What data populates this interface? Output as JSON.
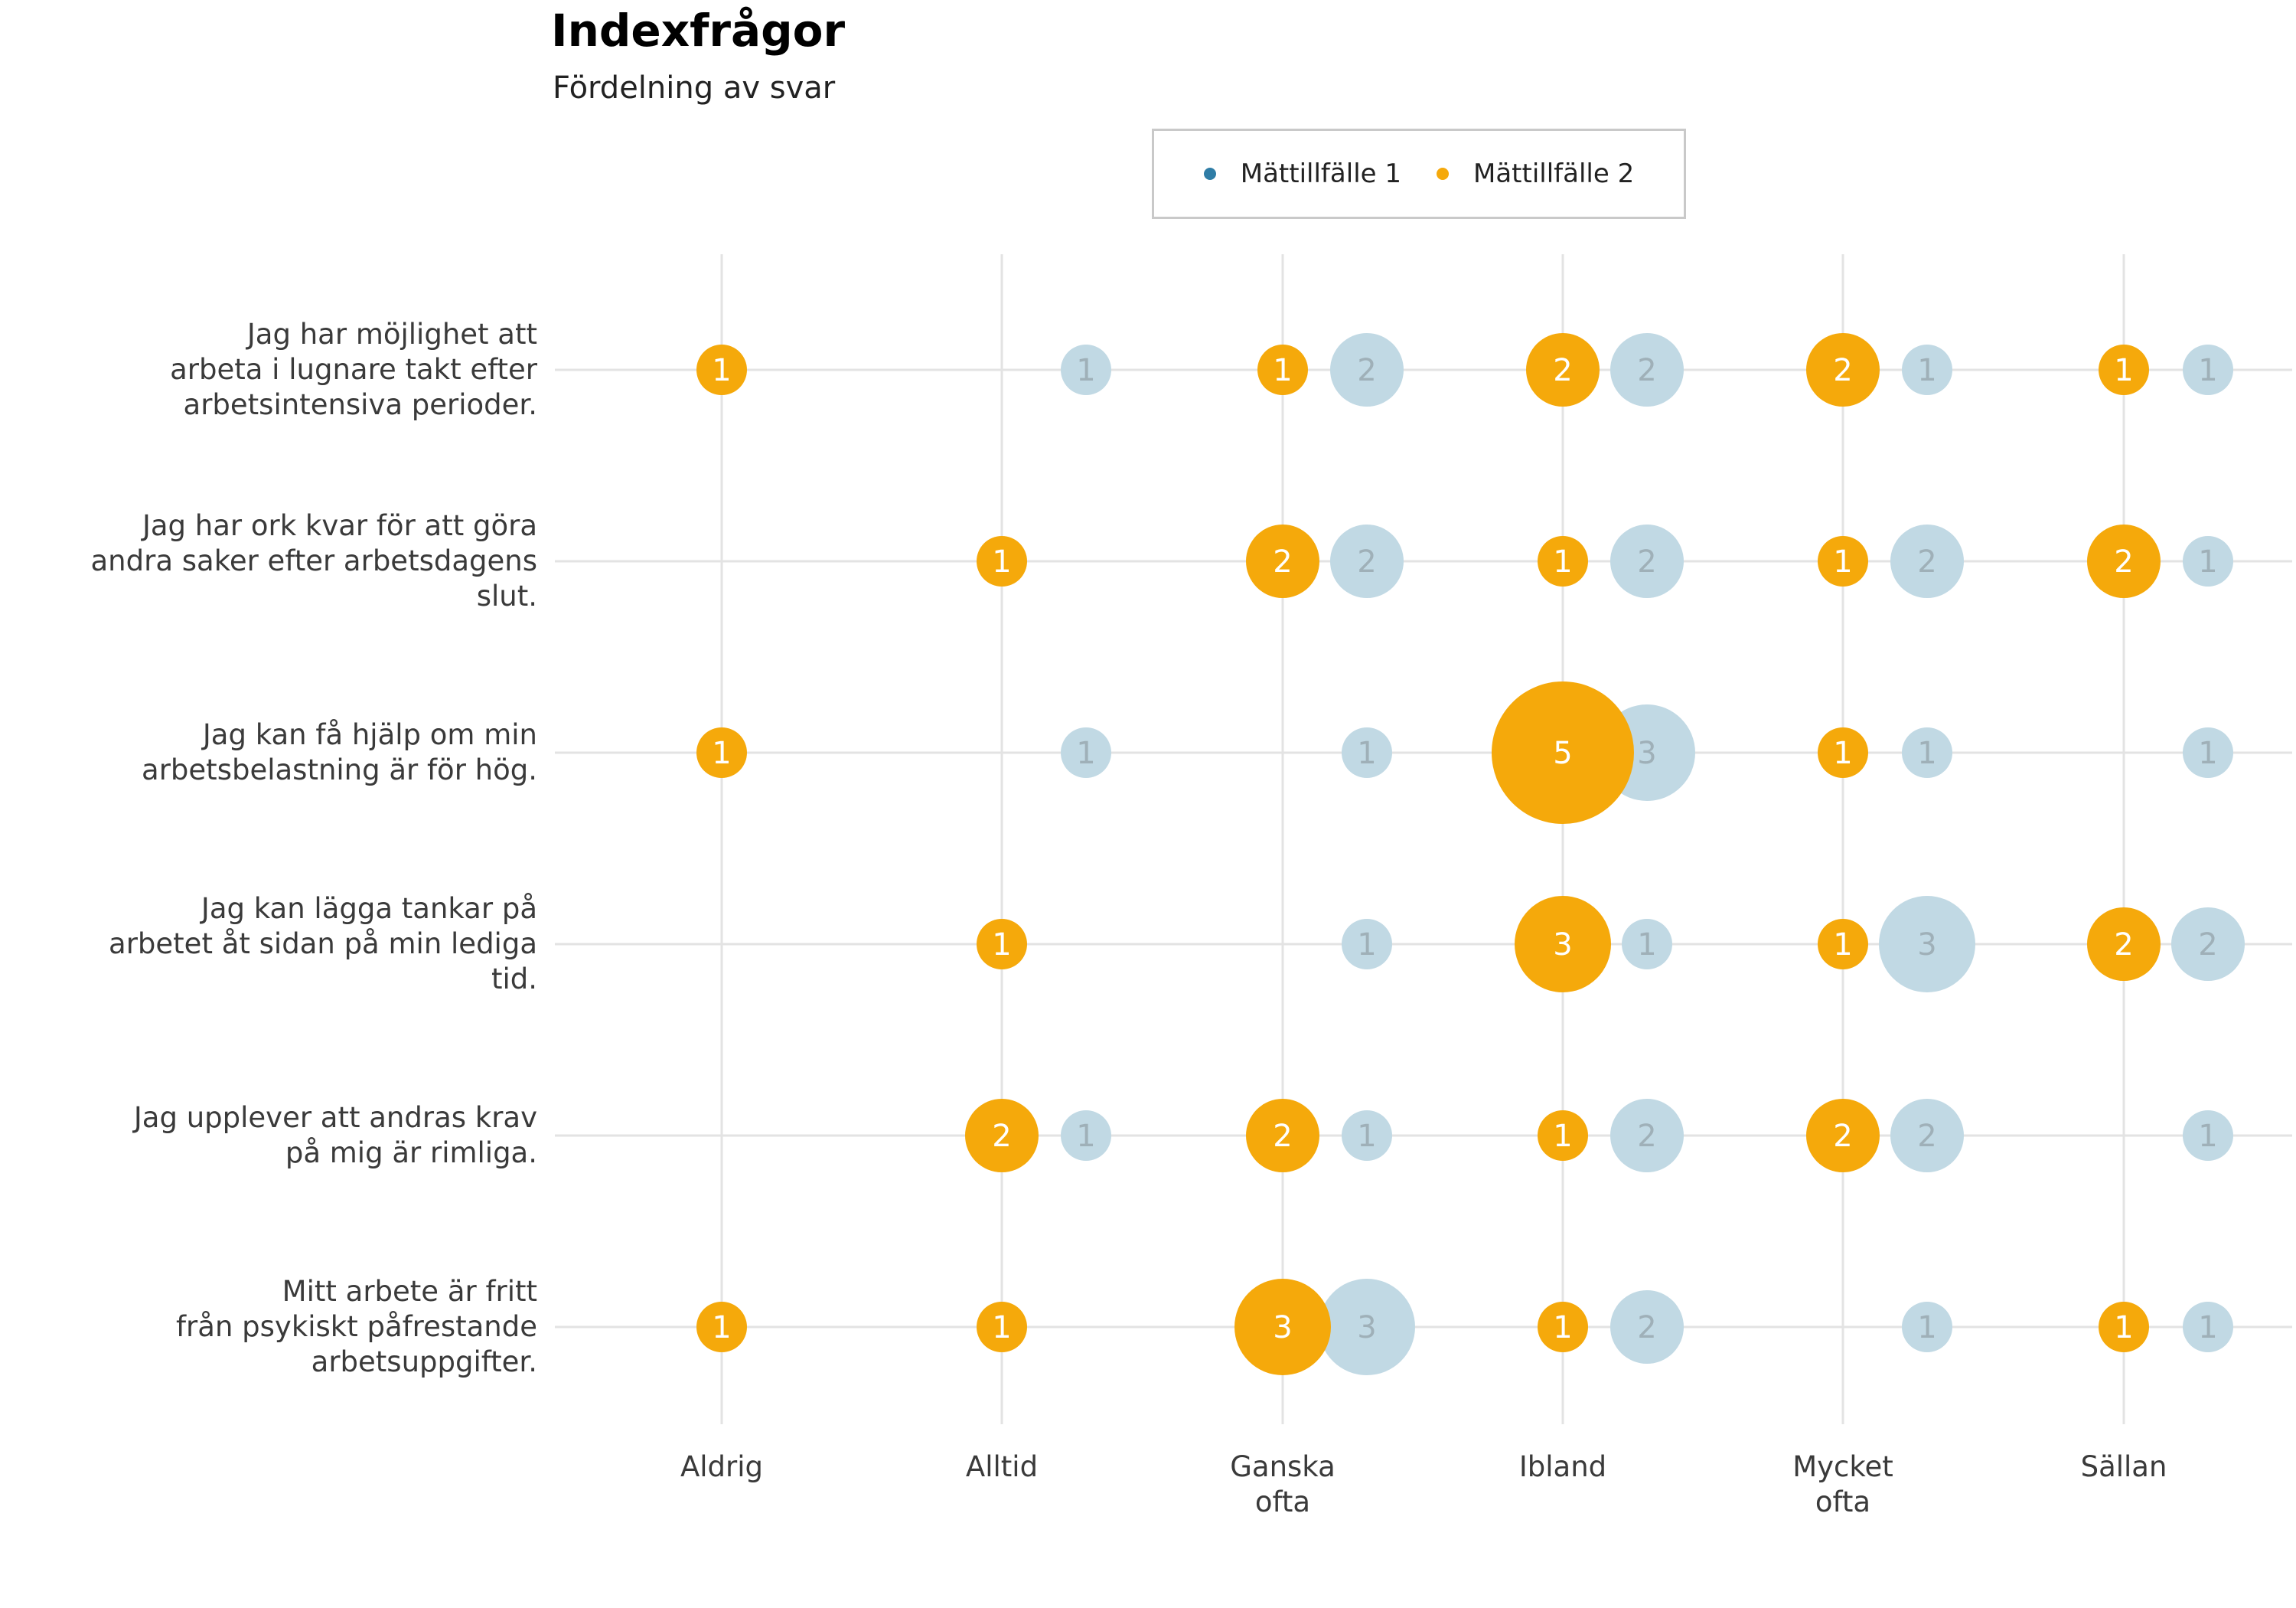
{
  "title": "Indexfrågor",
  "subtitle": "Fördelning av svar",
  "legend": [
    {
      "label": "Mättillfälle 1",
      "color": "#2f7da6"
    },
    {
      "label": "Mättillfälle 2",
      "color": "#f5a90b"
    }
  ],
  "chart_data": {
    "type": "bubble",
    "title": "Indexfrågor",
    "subtitle": "Fördelning av svar",
    "categories": [
      "Aldrig",
      "Alltid",
      "Ganska\nofta",
      "Ibland",
      "Mycket\nofta",
      "Sällan"
    ],
    "questions": [
      "Jag har möjlighet att\narbeta i lugnare takt efter\narbetsintensiva perioder.",
      "Jag har ork kvar för att göra\nandra saker efter arbetsdagens\nslut.",
      "Jag kan få hjälp om min\narbetsbelastning är för hög.",
      "Jag kan lägga tankar på\narbetet åt sidan på min lediga\ntid.",
      "Jag upplever att andras krav\npå mig är rimliga.",
      "Mitt arbete är fritt\nfrån psykiskt påfrestande\narbetsuppgifter."
    ],
    "series": [
      {
        "name": "Mättillfälle 1",
        "color": "#c1d9e4",
        "values": [
          [
            0,
            1,
            2,
            2,
            1,
            1
          ],
          [
            0,
            0,
            2,
            2,
            2,
            1
          ],
          [
            0,
            1,
            1,
            3,
            1,
            1
          ],
          [
            0,
            0,
            1,
            1,
            3,
            2
          ],
          [
            0,
            1,
            1,
            2,
            2,
            1
          ],
          [
            0,
            0,
            3,
            2,
            1,
            1
          ]
        ]
      },
      {
        "name": "Mättillfälle 2",
        "color": "#f5a90b",
        "values": [
          [
            1,
            0,
            1,
            2,
            2,
            1
          ],
          [
            0,
            1,
            2,
            1,
            1,
            2
          ],
          [
            1,
            0,
            0,
            5,
            1,
            0
          ],
          [
            0,
            1,
            0,
            3,
            1,
            2
          ],
          [
            0,
            2,
            2,
            1,
            2,
            0
          ],
          [
            1,
            1,
            3,
            1,
            0,
            1
          ]
        ]
      }
    ],
    "grid": true,
    "legend_position": "top"
  }
}
